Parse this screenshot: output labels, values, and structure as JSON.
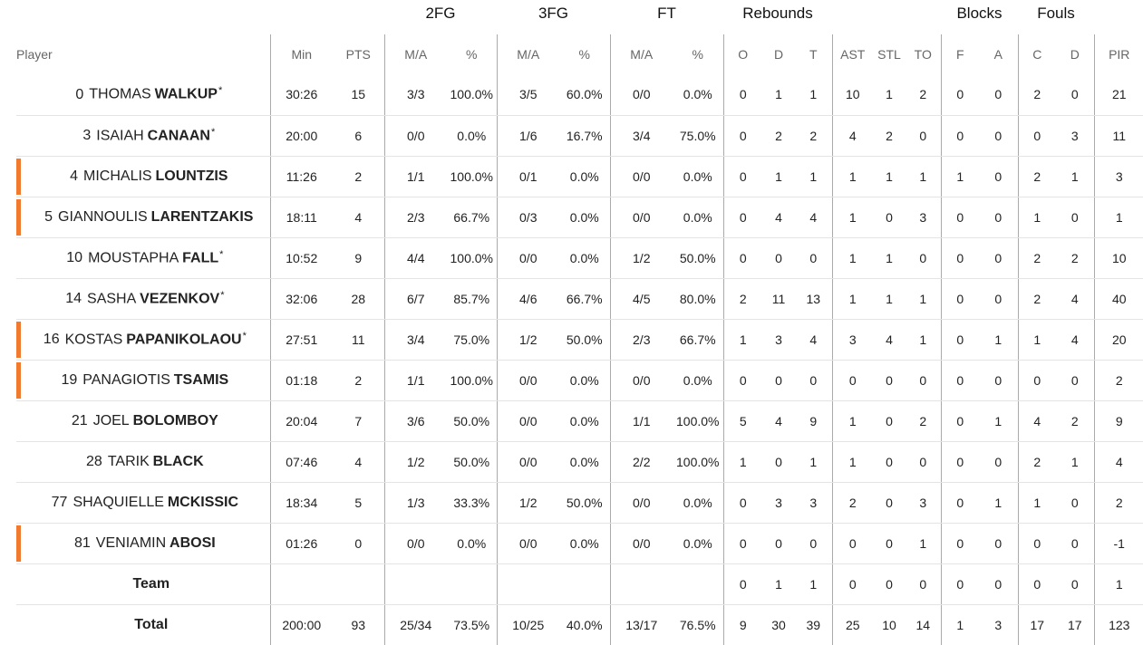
{
  "groups": [
    {
      "key": "2fg",
      "label": "2FG"
    },
    {
      "key": "3fg",
      "label": "3FG"
    },
    {
      "key": "ft",
      "label": "FT"
    },
    {
      "key": "reb",
      "label": "Rebounds"
    },
    {
      "key": "blk",
      "label": "Blocks"
    },
    {
      "key": "fouls",
      "label": "Fouls"
    }
  ],
  "columns": [
    "Player",
    "Min",
    "PTS",
    "M/A",
    "%",
    "M/A",
    "%",
    "M/A",
    "%",
    "O",
    "D",
    "T",
    "AST",
    "STL",
    "TO",
    "F",
    "A",
    "C",
    "D",
    "PIR"
  ],
  "players": [
    {
      "num": "0",
      "first": "THOMAS",
      "last": "WALKUP",
      "starter": true,
      "bench_mark": false,
      "stats": [
        "30:26",
        "15",
        "3/3",
        "100.0%",
        "3/5",
        "60.0%",
        "0/0",
        "0.0%",
        "0",
        "1",
        "1",
        "10",
        "1",
        "2",
        "0",
        "0",
        "2",
        "0",
        "21"
      ]
    },
    {
      "num": "3",
      "first": "ISAIAH",
      "last": "CANAAN",
      "starter": true,
      "bench_mark": false,
      "stats": [
        "20:00",
        "6",
        "0/0",
        "0.0%",
        "1/6",
        "16.7%",
        "3/4",
        "75.0%",
        "0",
        "2",
        "2",
        "4",
        "2",
        "0",
        "0",
        "0",
        "0",
        "3",
        "11"
      ]
    },
    {
      "num": "4",
      "first": "MICHALIS",
      "last": "LOUNTZIS",
      "starter": false,
      "bench_mark": true,
      "stats": [
        "11:26",
        "2",
        "1/1",
        "100.0%",
        "0/1",
        "0.0%",
        "0/0",
        "0.0%",
        "0",
        "1",
        "1",
        "1",
        "1",
        "1",
        "1",
        "0",
        "2",
        "1",
        "3"
      ]
    },
    {
      "num": "5",
      "first": "GIANNOULIS",
      "last": "LARENTZAKIS",
      "starter": false,
      "bench_mark": true,
      "stats": [
        "18:11",
        "4",
        "2/3",
        "66.7%",
        "0/3",
        "0.0%",
        "0/0",
        "0.0%",
        "0",
        "4",
        "4",
        "1",
        "0",
        "3",
        "0",
        "0",
        "1",
        "0",
        "1"
      ]
    },
    {
      "num": "10",
      "first": "MOUSTAPHA",
      "last": "FALL",
      "starter": true,
      "bench_mark": false,
      "stats": [
        "10:52",
        "9",
        "4/4",
        "100.0%",
        "0/0",
        "0.0%",
        "1/2",
        "50.0%",
        "0",
        "0",
        "0",
        "1",
        "1",
        "0",
        "0",
        "0",
        "2",
        "2",
        "10"
      ]
    },
    {
      "num": "14",
      "first": "SASHA",
      "last": "VEZENKOV",
      "starter": true,
      "bench_mark": false,
      "stats": [
        "32:06",
        "28",
        "6/7",
        "85.7%",
        "4/6",
        "66.7%",
        "4/5",
        "80.0%",
        "2",
        "11",
        "13",
        "1",
        "1",
        "1",
        "0",
        "0",
        "2",
        "4",
        "40"
      ]
    },
    {
      "num": "16",
      "first": "KOSTAS",
      "last": "PAPANIKOLAOU",
      "starter": true,
      "bench_mark": true,
      "stats": [
        "27:51",
        "11",
        "3/4",
        "75.0%",
        "1/2",
        "50.0%",
        "2/3",
        "66.7%",
        "1",
        "3",
        "4",
        "3",
        "4",
        "1",
        "0",
        "1",
        "1",
        "4",
        "20"
      ]
    },
    {
      "num": "19",
      "first": "PANAGIOTIS",
      "last": "TSAMIS",
      "starter": false,
      "bench_mark": true,
      "stats": [
        "01:18",
        "2",
        "1/1",
        "100.0%",
        "0/0",
        "0.0%",
        "0/0",
        "0.0%",
        "0",
        "0",
        "0",
        "0",
        "0",
        "0",
        "0",
        "0",
        "0",
        "0",
        "2"
      ]
    },
    {
      "num": "21",
      "first": "JOEL",
      "last": "BOLOMBOY",
      "starter": false,
      "bench_mark": false,
      "stats": [
        "20:04",
        "7",
        "3/6",
        "50.0%",
        "0/0",
        "0.0%",
        "1/1",
        "100.0%",
        "5",
        "4",
        "9",
        "1",
        "0",
        "2",
        "0",
        "1",
        "4",
        "2",
        "9"
      ]
    },
    {
      "num": "28",
      "first": "TARIK",
      "last": "BLACK",
      "starter": false,
      "bench_mark": false,
      "stats": [
        "07:46",
        "4",
        "1/2",
        "50.0%",
        "0/0",
        "0.0%",
        "2/2",
        "100.0%",
        "1",
        "0",
        "1",
        "1",
        "0",
        "0",
        "0",
        "0",
        "2",
        "1",
        "4"
      ]
    },
    {
      "num": "77",
      "first": "SHAQUIELLE",
      "last": "MCKISSIC",
      "starter": false,
      "bench_mark": false,
      "stats": [
        "18:34",
        "5",
        "1/3",
        "33.3%",
        "1/2",
        "50.0%",
        "0/0",
        "0.0%",
        "0",
        "3",
        "3",
        "2",
        "0",
        "3",
        "0",
        "1",
        "1",
        "0",
        "2"
      ]
    },
    {
      "num": "81",
      "first": "VENIAMIN",
      "last": "ABOSI",
      "starter": false,
      "bench_mark": true,
      "stats": [
        "01:26",
        "0",
        "0/0",
        "0.0%",
        "0/0",
        "0.0%",
        "0/0",
        "0.0%",
        "0",
        "0",
        "0",
        "0",
        "0",
        "1",
        "0",
        "0",
        "0",
        "0",
        "-1"
      ]
    }
  ],
  "team": {
    "label": "Team",
    "stats": [
      "",
      "",
      "",
      "",
      "",
      "",
      "",
      "",
      "0",
      "1",
      "1",
      "0",
      "0",
      "0",
      "0",
      "0",
      "0",
      "0",
      "1"
    ]
  },
  "total": {
    "label": "Total",
    "stats": [
      "200:00",
      "93",
      "25/34",
      "73.5%",
      "10/25",
      "40.0%",
      "13/17",
      "76.5%",
      "9",
      "30",
      "39",
      "25",
      "10",
      "14",
      "1",
      "3",
      "17",
      "17",
      "123"
    ]
  },
  "colors": {
    "bench_marker": "#f07a2e",
    "divider": "#aaaaaa",
    "row_border": "#e4e4e4"
  }
}
